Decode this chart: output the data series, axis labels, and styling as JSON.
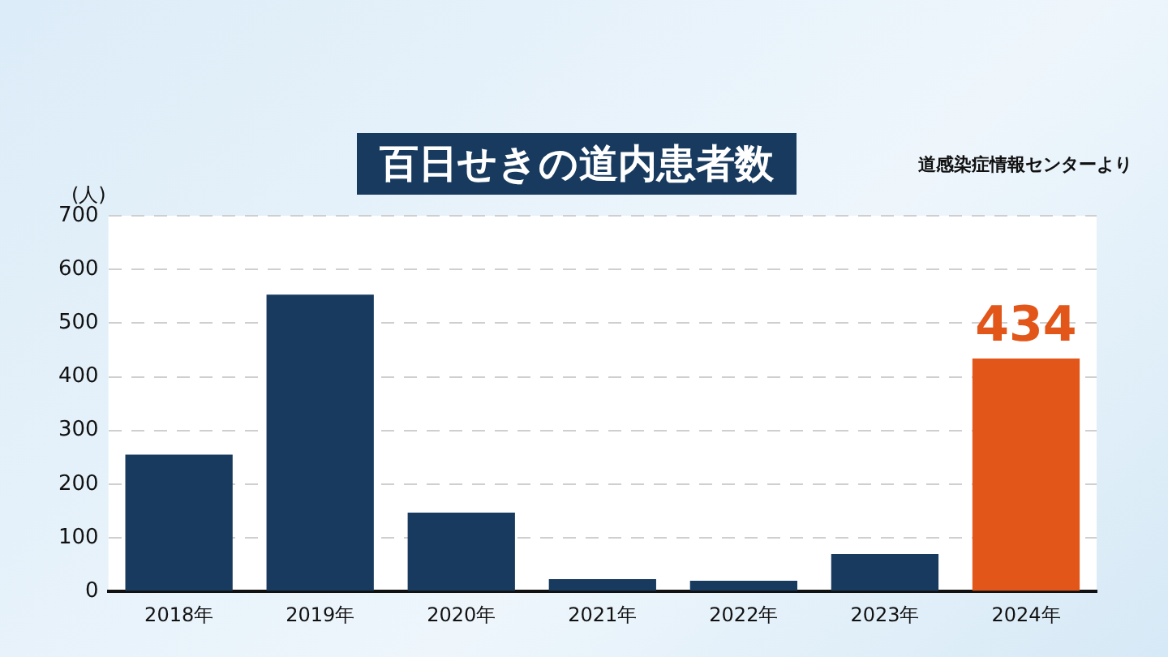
{
  "chart_data": {
    "type": "bar",
    "title": "百日せきの道内患者数",
    "ylabel": "(人)",
    "annotations": [
      "道感染症情報センターより"
    ],
    "categories": [
      "2018年",
      "2019年",
      "2020年",
      "2021年",
      "2022年",
      "2023年",
      "2024年"
    ],
    "values": [
      255,
      553,
      147,
      23,
      20,
      70,
      434
    ],
    "colors": [
      "#173a5e",
      "#173a5e",
      "#173a5e",
      "#173a5e",
      "#173a5e",
      "#173a5e",
      "#e2561a"
    ],
    "value_labels": [
      null,
      null,
      null,
      null,
      null,
      null,
      "434"
    ],
    "ylim": [
      0,
      700
    ],
    "yticks": [
      0,
      100,
      200,
      300,
      400,
      500,
      600,
      700
    ],
    "grid": "y",
    "legend": false
  }
}
